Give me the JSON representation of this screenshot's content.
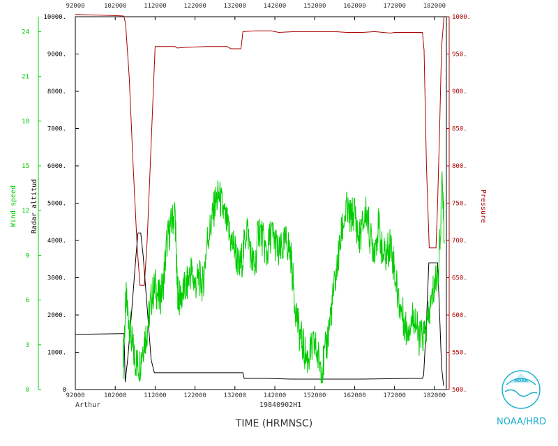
{
  "chart_data": {
    "type": "line",
    "title": "",
    "storm_name": "Arthur",
    "flight_id": "19840902H1",
    "xlabel": "TIME (HRMNSC)",
    "x_ticks": [
      "92000",
      "102000",
      "112000",
      "122000",
      "132000",
      "142000",
      "152000",
      "162000",
      "172000",
      "182000"
    ],
    "xlim": [
      92000,
      185000
    ],
    "axes": {
      "wind_speed": {
        "label": "Wind speed",
        "color": "#00cc00",
        "range": [
          0,
          25
        ],
        "ticks": [
          "0",
          "3",
          "6",
          "9",
          "12",
          "15",
          "18",
          "21",
          "24"
        ]
      },
      "radar_altitude": {
        "label": "Radar altitud",
        "color": "#000000",
        "range": [
          0,
          10000
        ],
        "ticks": [
          "0",
          "1000.",
          "2000.",
          "3000.",
          "4000.",
          "5000.",
          "6000.",
          "7000.",
          "8000.",
          "9000.",
          "10000."
        ]
      },
      "pressure": {
        "label": "Pressure",
        "color": "#aa0000",
        "range": [
          500,
          1000
        ],
        "ticks": [
          "500.",
          "550.",
          "600.",
          "650.",
          "700.",
          "750.",
          "800.",
          "850.",
          "900.",
          "950.",
          "1000."
        ]
      }
    },
    "series": [
      {
        "name": "Pressure",
        "axis": "pressure",
        "color": "#aa0000",
        "points": [
          [
            92000,
            1003
          ],
          [
            99000,
            1002
          ],
          [
            104000,
            1001
          ],
          [
            104200,
            1000
          ],
          [
            104600,
            990
          ],
          [
            105500,
            920
          ],
          [
            106500,
            800
          ],
          [
            107500,
            690
          ],
          [
            108200,
            640
          ],
          [
            109300,
            640
          ],
          [
            110000,
            700
          ],
          [
            111000,
            830
          ],
          [
            112000,
            960
          ],
          [
            117000,
            960
          ],
          [
            117500,
            958
          ],
          [
            120000,
            959
          ],
          [
            125000,
            960
          ],
          [
            130000,
            960
          ],
          [
            131000,
            957
          ],
          [
            133500,
            957
          ],
          [
            134000,
            980
          ],
          [
            137000,
            981
          ],
          [
            141000,
            981
          ],
          [
            143000,
            979
          ],
          [
            147000,
            980
          ],
          [
            152000,
            980
          ],
          [
            157000,
            980
          ],
          [
            160000,
            979
          ],
          [
            164000,
            979
          ],
          [
            167000,
            980
          ],
          [
            171000,
            978
          ],
          [
            172000,
            979
          ],
          [
            179000,
            979
          ],
          [
            179400,
            955
          ],
          [
            180000,
            800
          ],
          [
            180700,
            690
          ],
          [
            181700,
            690
          ],
          [
            182400,
            690
          ],
          [
            182800,
            750
          ],
          [
            183300,
            850
          ],
          [
            183800,
            960
          ],
          [
            184400,
            1000
          ]
        ]
      },
      {
        "name": "Radar altitud",
        "axis": "radar_altitude",
        "color": "#000000",
        "points": [
          [
            92000,
            1480
          ],
          [
            104000,
            1500
          ],
          [
            104200,
            1500
          ],
          [
            104500,
            200
          ],
          [
            105200,
            900
          ],
          [
            106200,
            2200
          ],
          [
            107200,
            3600
          ],
          [
            107700,
            4200
          ],
          [
            108400,
            4200
          ],
          [
            109000,
            3600
          ],
          [
            110000,
            2200
          ],
          [
            111000,
            800
          ],
          [
            111800,
            450
          ],
          [
            116000,
            450
          ],
          [
            124000,
            450
          ],
          [
            133500,
            450
          ],
          [
            134000,
            450
          ],
          [
            134300,
            300
          ],
          [
            140000,
            300
          ],
          [
            146000,
            280
          ],
          [
            152000,
            280
          ],
          [
            164000,
            280
          ],
          [
            176000,
            300
          ],
          [
            179000,
            300
          ],
          [
            179300,
            400
          ],
          [
            180000,
            1800
          ],
          [
            180600,
            3400
          ],
          [
            182800,
            3400
          ],
          [
            183300,
            2000
          ],
          [
            183800,
            600
          ],
          [
            184300,
            100
          ]
        ]
      },
      {
        "name": "Wind speed",
        "axis": "wind_speed",
        "color": "#00cc00",
        "points": [
          [
            104000,
            2
          ],
          [
            104700,
            6
          ],
          [
            105300,
            5
          ],
          [
            106200,
            3
          ],
          [
            107000,
            2
          ],
          [
            108000,
            1.5
          ],
          [
            109000,
            3
          ],
          [
            110000,
            4
          ],
          [
            111000,
            6
          ],
          [
            112000,
            7
          ],
          [
            113000,
            6
          ],
          [
            114000,
            7
          ],
          [
            115000,
            10
          ],
          [
            116000,
            11
          ],
          [
            117000,
            12
          ],
          [
            117500,
            7
          ],
          [
            118000,
            6
          ],
          [
            119000,
            6.5
          ],
          [
            120000,
            7
          ],
          [
            121000,
            8
          ],
          [
            122000,
            7
          ],
          [
            123000,
            7.5
          ],
          [
            124000,
            7
          ],
          [
            125000,
            10
          ],
          [
            126000,
            11
          ],
          [
            127000,
            12.5
          ],
          [
            128000,
            13
          ],
          [
            129000,
            12
          ],
          [
            130000,
            11
          ],
          [
            131000,
            10
          ],
          [
            132000,
            9.5
          ],
          [
            133000,
            8
          ],
          [
            134000,
            9
          ],
          [
            135000,
            11
          ],
          [
            136000,
            9
          ],
          [
            137000,
            8
          ],
          [
            138000,
            11
          ],
          [
            139000,
            10
          ],
          [
            140000,
            9
          ],
          [
            141000,
            10.5
          ],
          [
            142000,
            10
          ],
          [
            143000,
            9
          ],
          [
            144000,
            9.5
          ],
          [
            145000,
            10
          ],
          [
            146000,
            9
          ],
          [
            147000,
            6
          ],
          [
            148000,
            4
          ],
          [
            149000,
            3
          ],
          [
            150000,
            2
          ],
          [
            151000,
            2.5
          ],
          [
            152000,
            3
          ],
          [
            153000,
            2
          ],
          [
            154000,
            1.5
          ],
          [
            155000,
            3
          ],
          [
            156000,
            5
          ],
          [
            157000,
            7
          ],
          [
            158000,
            9
          ],
          [
            159000,
            11
          ],
          [
            160000,
            12
          ],
          [
            161000,
            11.5
          ],
          [
            162000,
            12
          ],
          [
            163000,
            10
          ],
          [
            164000,
            11
          ],
          [
            165000,
            12
          ],
          [
            166000,
            10
          ],
          [
            167000,
            9.5
          ],
          [
            168000,
            11
          ],
          [
            169000,
            9
          ],
          [
            170000,
            9
          ],
          [
            171000,
            10
          ],
          [
            172000,
            8
          ],
          [
            173000,
            6
          ],
          [
            174000,
            5
          ],
          [
            175000,
            4
          ],
          [
            176000,
            4.5
          ],
          [
            177000,
            5
          ],
          [
            178000,
            3.5
          ],
          [
            179000,
            3.5
          ],
          [
            180000,
            4
          ],
          [
            181000,
            5.5
          ],
          [
            182000,
            7
          ],
          [
            183000,
            8
          ],
          [
            184000,
            14
          ],
          [
            184500,
            10
          ]
        ]
      }
    ]
  },
  "branding": {
    "org_label": "NOAA/HRD",
    "logo_text": "NOAA"
  }
}
